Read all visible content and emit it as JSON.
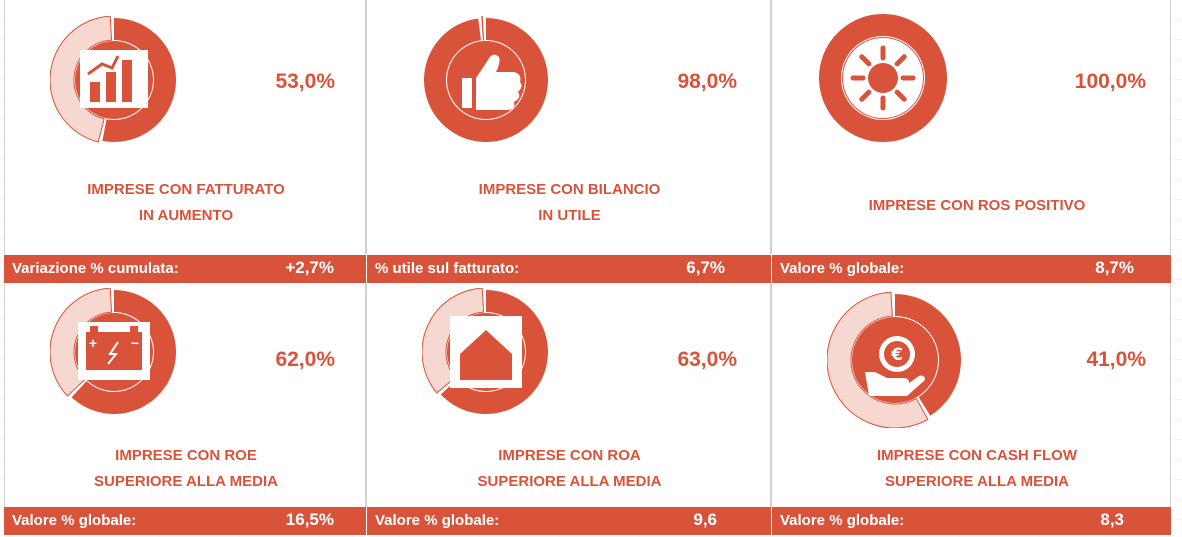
{
  "colors": {
    "accent": "#d9533b",
    "remainder": "#f7d8d0",
    "text_on_accent": "#ffffff"
  },
  "cards": [
    {
      "icon": "bar-chart-growth-icon",
      "percent": "53,0%",
      "percent_value": 53.0,
      "title_line1": "IMPRESE CON FATTURATO",
      "title_line2": "IN AUMENTO",
      "bar_label": "Variazione % cumulata:",
      "bar_value": "+2,7%"
    },
    {
      "icon": "thumbs-up-icon",
      "percent": "98,0%",
      "percent_value": 98.0,
      "title_line1": "IMPRESE CON BILANCIO",
      "title_line2": "IN UTILE",
      "bar_label": "% utile sul fatturato:",
      "bar_value": "6,7%"
    },
    {
      "icon": "sun-icon",
      "percent": "100,0%",
      "percent_value": 100.0,
      "title_line1": "IMPRESE CON ROS POSITIVO",
      "title_line2": "",
      "bar_label": "Valore % globale:",
      "bar_value": "8,7%"
    },
    {
      "icon": "battery-icon",
      "percent": "62,0%",
      "percent_value": 62.0,
      "title_line1": "IMPRESE CON ROE",
      "title_line2": "SUPERIORE ALLA MEDIA",
      "bar_label": "Valore % globale:",
      "bar_value": "16,5%"
    },
    {
      "icon": "house-icon",
      "percent": "63,0%",
      "percent_value": 63.0,
      "title_line1": "IMPRESE CON ROA",
      "title_line2": "SUPERIORE ALLA MEDIA",
      "bar_label": "Valore % globale:",
      "bar_value": "9,6"
    },
    {
      "icon": "euro-hand-icon",
      "percent": "41,0%",
      "percent_value": 41.0,
      "title_line1": "IMPRESE CON CASH FLOW",
      "title_line2": "SUPERIORE ALLA MEDIA",
      "bar_label": "Valore % globale:",
      "bar_value": "8,3"
    }
  ],
  "chart_data": {
    "type": "pie",
    "categories": [
      "IMPRESE CON FATTURATO IN AUMENTO",
      "IMPRESE CON BILANCIO IN UTILE",
      "IMPRESE CON ROS POSITIVO",
      "IMPRESE CON ROE SUPERIORE ALLA MEDIA",
      "IMPRESE CON ROA SUPERIORE ALLA MEDIA",
      "IMPRESE CON CASH FLOW SUPERIORE ALLA MEDIA"
    ],
    "values": [
      53.0,
      98.0,
      100.0,
      62.0,
      63.0,
      41.0
    ]
  }
}
